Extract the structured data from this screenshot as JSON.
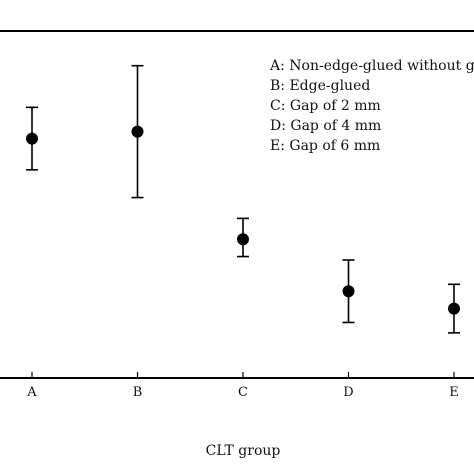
{
  "chart_data": {
    "type": "scatter",
    "xlabel": "CLT group",
    "ylabel": "",
    "title": "",
    "categories": [
      "A",
      "B",
      "C",
      "D",
      "E"
    ],
    "series": [
      {
        "values": [
          0.69,
          0.71,
          0.4,
          0.25,
          0.2
        ],
        "err_low": [
          0.6,
          0.52,
          0.35,
          0.16,
          0.13
        ],
        "err_high": [
          0.78,
          0.9,
          0.46,
          0.34,
          0.27
        ]
      }
    ],
    "ylim": [
      0,
      1
    ],
    "grid": false,
    "legend_position": "top-right",
    "legend": [
      "A: Non-edge-glued without g",
      "B: Edge-glued",
      "C: Gap of 2 mm",
      "D: Gap of 4 mm",
      "E: Gap of 6 mm"
    ],
    "colors": {
      "marker": "#000000",
      "axis": "#000000"
    }
  }
}
